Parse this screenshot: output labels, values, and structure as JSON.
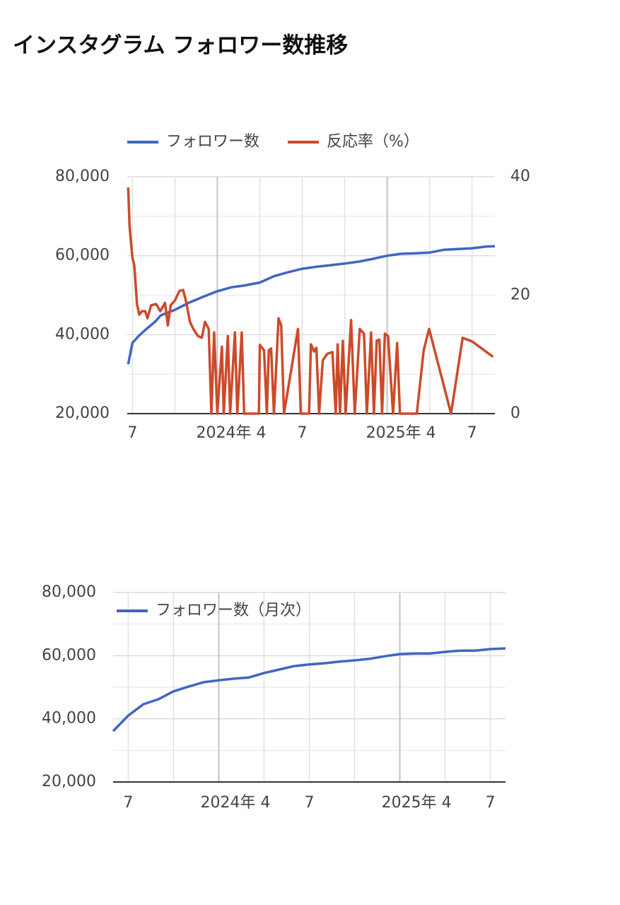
{
  "title": "インスタグラム フォロワー数推移",
  "chart_data": [
    {
      "type": "line",
      "xlim": [
        "2023-06-20",
        "2025-08-20"
      ],
      "xticks": [
        {
          "value": "2023-07",
          "label": "7"
        },
        {
          "value": "2024-04",
          "label": "2024年 4"
        },
        {
          "value": "2024-07",
          "label": "7"
        },
        {
          "value": "2025-04",
          "label": "2025年 4"
        },
        {
          "value": "2025-07",
          "label": "7"
        }
      ],
      "xgrid": [
        "2023-07",
        "2023-10",
        "2024-01",
        "2024-04",
        "2024-07",
        "2024-10",
        "2025-01",
        "2025-04",
        "2025-07"
      ],
      "x_major_grid": [
        "2024-01",
        "2025-01"
      ],
      "ylim": [
        20000,
        80000
      ],
      "yticks": [
        {
          "value": 20000,
          "label": "20,000"
        },
        {
          "value": 40000,
          "label": "40,000"
        },
        {
          "value": 60000,
          "label": "60,000"
        },
        {
          "value": 80000,
          "label": "80,000"
        }
      ],
      "minor_yticks": [
        30000,
        50000,
        70000
      ],
      "y2lim": [
        0,
        40
      ],
      "y2ticks": [
        0,
        20,
        40
      ],
      "grid": true,
      "legend": "top",
      "series": [
        {
          "name": "フォロワー数",
          "color": "#4066c2",
          "x": [
            "2023-06-22",
            "2023-07-01",
            "2023-07-15",
            "2023-08-01",
            "2023-08-20",
            "2023-09-01",
            "2023-10-01",
            "2023-11-01",
            "2023-12-01",
            "2024-01-01",
            "2024-02-01",
            "2024-03-01",
            "2024-04-01",
            "2024-05-01",
            "2024-06-01",
            "2024-07-01",
            "2024-08-01",
            "2024-09-01",
            "2024-10-01",
            "2024-11-01",
            "2024-12-01",
            "2025-01-01",
            "2025-02-01",
            "2025-03-01",
            "2025-04-01",
            "2025-05-01",
            "2025-06-01",
            "2025-07-01",
            "2025-08-01",
            "2025-08-20"
          ],
          "values": [
            32500,
            37900,
            39700,
            41500,
            43300,
            44900,
            46300,
            48100,
            49600,
            51000,
            52000,
            52500,
            53200,
            54800,
            55800,
            56700,
            57200,
            57600,
            58000,
            58500,
            59200,
            60000,
            60500,
            60600,
            60800,
            61500,
            61700,
            61900,
            62300,
            62400
          ]
        },
        {
          "name": "反応率（%）",
          "color": "#cc4a2b",
          "axis": "y2",
          "x": [
            "2023-06-22",
            "2023-06-25",
            "2023-07-01",
            "2023-07-05",
            "2023-07-11",
            "2023-07-16",
            "2023-07-22",
            "2023-07-29",
            "2023-08-03",
            "2023-08-11",
            "2023-08-22",
            "2023-08-31",
            "2023-09-10",
            "2023-09-16",
            "2023-09-22",
            "2023-10-01",
            "2023-10-11",
            "2023-10-19",
            "2023-10-25",
            "2023-11-03",
            "2023-11-10",
            "2023-11-20",
            "2023-11-28",
            "2023-12-05",
            "2023-12-13",
            "2023-12-19",
            "2023-12-25",
            "2024-01-01",
            "2024-01-11",
            "2024-01-15",
            "2024-01-24",
            "2024-01-29",
            "2024-02-08",
            "2024-02-13",
            "2024-02-22",
            "2024-02-27",
            "2024-03-30",
            "2024-04-01",
            "2024-04-10",
            "2024-04-16",
            "2024-04-20",
            "2024-04-25",
            "2024-05-01",
            "2024-05-11",
            "2024-05-17",
            "2024-05-23",
            "2024-06-22",
            "2024-06-28",
            "2024-07-16",
            "2024-07-20",
            "2024-07-27",
            "2024-08-01",
            "2024-08-07",
            "2024-08-15",
            "2024-08-25",
            "2024-09-05",
            "2024-09-12",
            "2024-09-16",
            "2024-09-21",
            "2024-09-27",
            "2024-10-03",
            "2024-10-15",
            "2024-10-23",
            "2024-11-03",
            "2024-11-12",
            "2024-11-18",
            "2024-11-27",
            "2024-12-03",
            "2024-12-09",
            "2024-12-15",
            "2024-12-21",
            "2024-12-27",
            "2025-01-03",
            "2025-01-14",
            "2025-01-23",
            "2025-01-29",
            "2025-03-04",
            "2025-03-19",
            "2025-03-31",
            "2025-05-17",
            "2025-06-11",
            "2025-07-01",
            "2025-08-16"
          ],
          "values": [
            38.2,
            31.6,
            26.3,
            25.1,
            18.5,
            16.7,
            17.3,
            17.3,
            16.1,
            18.3,
            18.5,
            17.3,
            18.7,
            14.9,
            18.3,
            19.1,
            20.7,
            20.9,
            19.1,
            15.5,
            14.3,
            13.1,
            12.8,
            15.5,
            14.3,
            0,
            13.7,
            0,
            11.3,
            0,
            13.1,
            0,
            13.7,
            0,
            13.7,
            0,
            0,
            11.6,
            10.7,
            0,
            10.7,
            11.0,
            0,
            16.1,
            14.9,
            0,
            14.3,
            0,
            0,
            11.7,
            10.5,
            11.1,
            0,
            9.0,
            10.1,
            10.4,
            0,
            11.7,
            0,
            12.3,
            0,
            15.8,
            0,
            14.3,
            13.5,
            0,
            13.7,
            0,
            12.3,
            12.5,
            0,
            13.5,
            13.1,
            0,
            11.9,
            0,
            0,
            10.7,
            14.3,
            0,
            12.8,
            12.2,
            9.6
          ]
        }
      ]
    },
    {
      "type": "line",
      "xlim": [
        "2023-06",
        "2025-08"
      ],
      "xticks": [
        {
          "value": "2023-07",
          "label": "7"
        },
        {
          "value": "2024-04",
          "label": "2024年 4"
        },
        {
          "value": "2024-07",
          "label": "7"
        },
        {
          "value": "2025-04",
          "label": "2025年 4"
        },
        {
          "value": "2025-07",
          "label": "7"
        }
      ],
      "xgrid": [
        "2023-07",
        "2023-10",
        "2024-01",
        "2024-04",
        "2024-07",
        "2024-10",
        "2025-01",
        "2025-04",
        "2025-07"
      ],
      "x_major_grid": [
        "2024-01",
        "2025-01"
      ],
      "ylim": [
        20000,
        80000
      ],
      "yticks": [
        {
          "value": 20000,
          "label": "20,000"
        },
        {
          "value": 40000,
          "label": "40,000"
        },
        {
          "value": 60000,
          "label": "60,000"
        },
        {
          "value": 80000,
          "label": "80,000"
        }
      ],
      "minor_yticks": [
        30000,
        50000,
        70000
      ],
      "grid": true,
      "legend": "top-left",
      "series": [
        {
          "name": "フォロワー数（月次）",
          "color": "#4066c2",
          "x": [
            "2023-06",
            "2023-07",
            "2023-08",
            "2023-09",
            "2023-10",
            "2023-11",
            "2023-12",
            "2024-01",
            "2024-02",
            "2024-03",
            "2024-04",
            "2024-05",
            "2024-06",
            "2024-07",
            "2024-08",
            "2024-09",
            "2024-10",
            "2024-11",
            "2024-12",
            "2025-01",
            "2025-02",
            "2025-03",
            "2025-04",
            "2025-05",
            "2025-06",
            "2025-07",
            "2025-08"
          ],
          "values": [
            36100,
            41000,
            44600,
            46200,
            48700,
            50200,
            51600,
            52200,
            52700,
            53100,
            54500,
            55600,
            56700,
            57200,
            57600,
            58100,
            58500,
            59000,
            59800,
            60500,
            60700,
            60700,
            61200,
            61600,
            61600,
            62100,
            62300
          ]
        }
      ]
    }
  ]
}
